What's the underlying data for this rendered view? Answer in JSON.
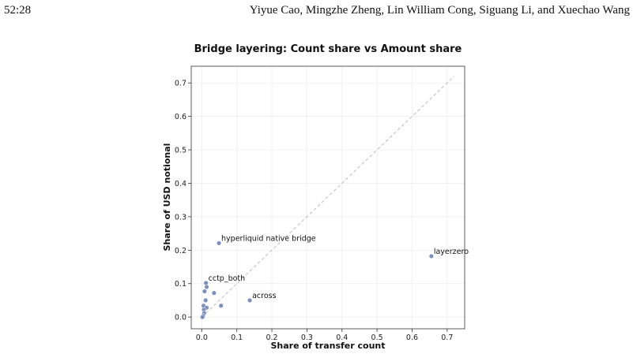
{
  "header": {
    "page_number": "52:28",
    "authors": "Yiyue Cao, Mingzhe Zheng, Lin William Cong, Siguang Li, and Xuechao Wang"
  },
  "chart_data": {
    "type": "scatter",
    "title": "Bridge layering: Count share vs Amount share",
    "xlabel": "Share of transfer count",
    "ylabel": "Share of USD notional",
    "xlim": [
      -0.03,
      0.75
    ],
    "ylim": [
      -0.035,
      0.75
    ],
    "x_ticks": [
      0.0,
      0.1,
      0.2,
      0.3,
      0.4,
      0.5,
      0.6,
      0.7
    ],
    "y_ticks": [
      0.0,
      0.1,
      0.2,
      0.3,
      0.4,
      0.5,
      0.6,
      0.7
    ],
    "x_tick_labels": [
      "0.0",
      "0.1",
      "0.2",
      "0.3",
      "0.4",
      "0.5",
      "0.6",
      "0.7"
    ],
    "y_tick_labels": [
      "0.0",
      "0.1",
      "0.2",
      "0.3",
      "0.4",
      "0.5",
      "0.6",
      "0.7"
    ],
    "grid": true,
    "reference_line": {
      "x": [
        0,
        0.72
      ],
      "y": [
        0,
        0.72
      ],
      "style": "dashed"
    },
    "point_color": "#7b90bf",
    "points": [
      {
        "x": 0.655,
        "y": 0.182,
        "label": "layerzero"
      },
      {
        "x": 0.049,
        "y": 0.221,
        "label": "hyperliquid native bridge"
      },
      {
        "x": 0.137,
        "y": 0.05,
        "label": "across"
      },
      {
        "x": 0.012,
        "y": 0.102,
        "label": "cctp_both"
      },
      {
        "x": 0.014,
        "y": 0.09,
        "label": ""
      },
      {
        "x": 0.008,
        "y": 0.077,
        "label": ""
      },
      {
        "x": 0.035,
        "y": 0.072,
        "label": ""
      },
      {
        "x": 0.055,
        "y": 0.034,
        "label": ""
      },
      {
        "x": 0.011,
        "y": 0.05,
        "label": ""
      },
      {
        "x": 0.005,
        "y": 0.034,
        "label": ""
      },
      {
        "x": 0.014,
        "y": 0.028,
        "label": ""
      },
      {
        "x": 0.006,
        "y": 0.022,
        "label": ""
      },
      {
        "x": 0.007,
        "y": 0.012,
        "label": ""
      },
      {
        "x": 0.004,
        "y": 0.004,
        "label": ""
      },
      {
        "x": 0.002,
        "y": 0.0,
        "label": ""
      }
    ]
  }
}
